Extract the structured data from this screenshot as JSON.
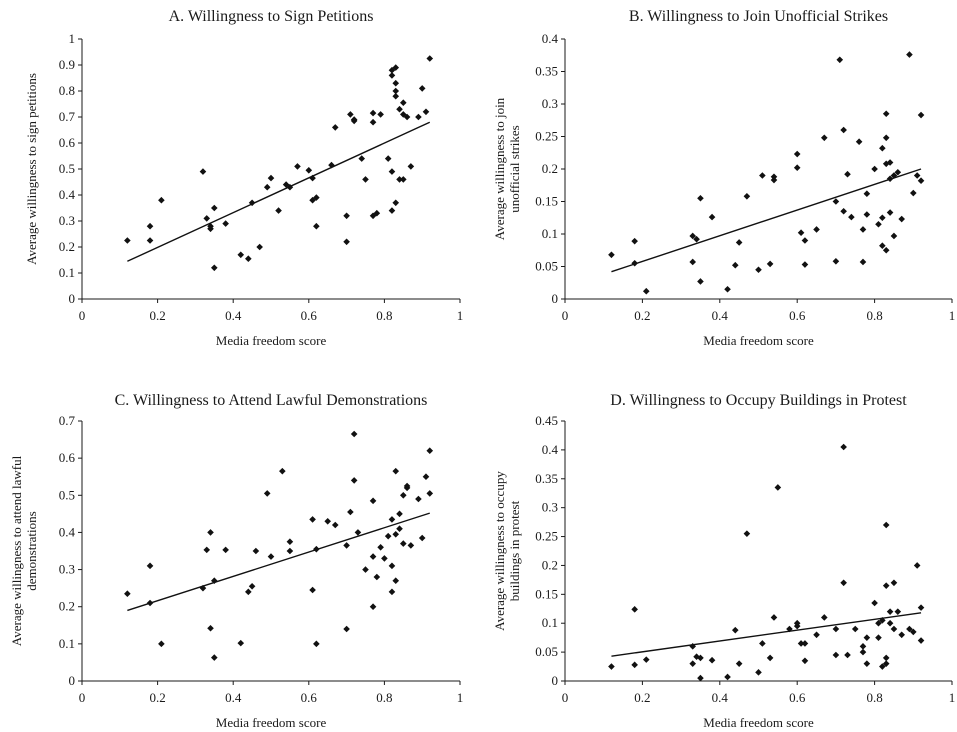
{
  "chart_data": [
    {
      "type": "scatter",
      "title": "A. Willingness to Sign Petitions",
      "xlabel": "Media freedom score",
      "ylabel": [
        "Average willingness to sign petitions"
      ],
      "xlim": [
        0,
        1
      ],
      "ylim": [
        0,
        1
      ],
      "xticks": [
        "0",
        "0.2",
        "0.4",
        "0.6",
        "0.8",
        "1"
      ],
      "yticks": [
        "0",
        "0.1",
        "0.2",
        "0.3",
        "0.4",
        "0.5",
        "0.6",
        "0.7",
        "0.8",
        "0.9",
        "1"
      ],
      "grid": false,
      "trendline": {
        "x": [
          0.12,
          0.92
        ],
        "y": [
          0.145,
          0.68
        ]
      },
      "points": [
        [
          0.12,
          0.225
        ],
        [
          0.18,
          0.28
        ],
        [
          0.18,
          0.225
        ],
        [
          0.21,
          0.38
        ],
        [
          0.32,
          0.49
        ],
        [
          0.33,
          0.31
        ],
        [
          0.34,
          0.28
        ],
        [
          0.34,
          0.27
        ],
        [
          0.35,
          0.35
        ],
        [
          0.35,
          0.12
        ],
        [
          0.38,
          0.29
        ],
        [
          0.42,
          0.17
        ],
        [
          0.44,
          0.155
        ],
        [
          0.45,
          0.37
        ],
        [
          0.47,
          0.2
        ],
        [
          0.49,
          0.43
        ],
        [
          0.5,
          0.465
        ],
        [
          0.52,
          0.34
        ],
        [
          0.54,
          0.44
        ],
        [
          0.55,
          0.43
        ],
        [
          0.57,
          0.51
        ],
        [
          0.6,
          0.495
        ],
        [
          0.61,
          0.465
        ],
        [
          0.61,
          0.38
        ],
        [
          0.62,
          0.39
        ],
        [
          0.62,
          0.28
        ],
        [
          0.66,
          0.515
        ],
        [
          0.67,
          0.66
        ],
        [
          0.7,
          0.32
        ],
        [
          0.7,
          0.22
        ],
        [
          0.71,
          0.71
        ],
        [
          0.72,
          0.69
        ],
        [
          0.72,
          0.685
        ],
        [
          0.74,
          0.54
        ],
        [
          0.75,
          0.46
        ],
        [
          0.77,
          0.715
        ],
        [
          0.77,
          0.68
        ],
        [
          0.77,
          0.32
        ],
        [
          0.78,
          0.33
        ],
        [
          0.79,
          0.71
        ],
        [
          0.81,
          0.54
        ],
        [
          0.82,
          0.49
        ],
        [
          0.82,
          0.34
        ],
        [
          0.82,
          0.88
        ],
        [
          0.82,
          0.86
        ],
        [
          0.83,
          0.83
        ],
        [
          0.83,
          0.89
        ],
        [
          0.83,
          0.37
        ],
        [
          0.83,
          0.8
        ],
        [
          0.83,
          0.78
        ],
        [
          0.84,
          0.73
        ],
        [
          0.84,
          0.46
        ],
        [
          0.85,
          0.755
        ],
        [
          0.85,
          0.71
        ],
        [
          0.85,
          0.46
        ],
        [
          0.86,
          0.7
        ],
        [
          0.87,
          0.51
        ],
        [
          0.89,
          0.7
        ],
        [
          0.9,
          0.81
        ],
        [
          0.91,
          0.72
        ],
        [
          0.92,
          0.925
        ]
      ]
    },
    {
      "type": "scatter",
      "title": "B. Willingness to Join Unofficial Strikes",
      "xlabel": "Media freedom score",
      "ylabel": [
        "Average willingness to join",
        "unofficial strikes"
      ],
      "xlim": [
        0,
        1
      ],
      "ylim": [
        0,
        0.4
      ],
      "xticks": [
        "0",
        "0.2",
        "0.4",
        "0.6",
        "0.8",
        "1"
      ],
      "yticks": [
        "0",
        "0.05",
        "0.1",
        "0.15",
        "0.2",
        "0.25",
        "0.3",
        "0.35",
        "0.4"
      ],
      "grid": false,
      "trendline": {
        "x": [
          0.12,
          0.92
        ],
        "y": [
          0.042,
          0.2
        ]
      },
      "points": [
        [
          0.12,
          0.068
        ],
        [
          0.18,
          0.089
        ],
        [
          0.18,
          0.055
        ],
        [
          0.21,
          0.012
        ],
        [
          0.33,
          0.057
        ],
        [
          0.33,
          0.097
        ],
        [
          0.34,
          0.092
        ],
        [
          0.35,
          0.155
        ],
        [
          0.35,
          0.027
        ],
        [
          0.38,
          0.126
        ],
        [
          0.42,
          0.015
        ],
        [
          0.44,
          0.052
        ],
        [
          0.45,
          0.087
        ],
        [
          0.47,
          0.158
        ],
        [
          0.5,
          0.045
        ],
        [
          0.51,
          0.19
        ],
        [
          0.53,
          0.054
        ],
        [
          0.54,
          0.183
        ],
        [
          0.54,
          0.188
        ],
        [
          0.6,
          0.202
        ],
        [
          0.6,
          0.223
        ],
        [
          0.61,
          0.102
        ],
        [
          0.62,
          0.053
        ],
        [
          0.62,
          0.09
        ],
        [
          0.65,
          0.107
        ],
        [
          0.67,
          0.248
        ],
        [
          0.7,
          0.15
        ],
        [
          0.7,
          0.058
        ],
        [
          0.71,
          0.368
        ],
        [
          0.72,
          0.26
        ],
        [
          0.72,
          0.135
        ],
        [
          0.73,
          0.192
        ],
        [
          0.74,
          0.126
        ],
        [
          0.76,
          0.242
        ],
        [
          0.77,
          0.057
        ],
        [
          0.77,
          0.107
        ],
        [
          0.78,
          0.162
        ],
        [
          0.78,
          0.13
        ],
        [
          0.8,
          0.2
        ],
        [
          0.81,
          0.115
        ],
        [
          0.82,
          0.125
        ],
        [
          0.82,
          0.082
        ],
        [
          0.82,
          0.232
        ],
        [
          0.83,
          0.248
        ],
        [
          0.83,
          0.285
        ],
        [
          0.83,
          0.075
        ],
        [
          0.83,
          0.208
        ],
        [
          0.84,
          0.21
        ],
        [
          0.84,
          0.185
        ],
        [
          0.84,
          0.133
        ],
        [
          0.85,
          0.097
        ],
        [
          0.85,
          0.19
        ],
        [
          0.86,
          0.195
        ],
        [
          0.87,
          0.123
        ],
        [
          0.89,
          0.376
        ],
        [
          0.9,
          0.163
        ],
        [
          0.91,
          0.19
        ],
        [
          0.92,
          0.283
        ],
        [
          0.92,
          0.182
        ]
      ]
    },
    {
      "type": "scatter",
      "title": "C. Willingness to Attend Lawful Demonstrations",
      "xlabel": "Media freedom score",
      "ylabel": [
        "Average willingness to attend lawful",
        "demonstrations"
      ],
      "xlim": [
        0,
        1
      ],
      "ylim": [
        0,
        0.7
      ],
      "xticks": [
        "0",
        "0.2",
        "0.4",
        "0.6",
        "0.8",
        "1"
      ],
      "yticks": [
        "0",
        "0.1",
        "0.2",
        "0.3",
        "0.4",
        "0.5",
        "0.6",
        "0.7"
      ],
      "grid": false,
      "trendline": {
        "x": [
          0.12,
          0.92
        ],
        "y": [
          0.19,
          0.452
        ]
      },
      "points": [
        [
          0.12,
          0.235
        ],
        [
          0.18,
          0.31
        ],
        [
          0.18,
          0.21
        ],
        [
          0.21,
          0.1
        ],
        [
          0.32,
          0.25
        ],
        [
          0.33,
          0.353
        ],
        [
          0.34,
          0.4
        ],
        [
          0.34,
          0.142
        ],
        [
          0.35,
          0.27
        ],
        [
          0.35,
          0.063
        ],
        [
          0.38,
          0.353
        ],
        [
          0.42,
          0.102
        ],
        [
          0.44,
          0.24
        ],
        [
          0.45,
          0.255
        ],
        [
          0.46,
          0.35
        ],
        [
          0.49,
          0.505
        ],
        [
          0.5,
          0.335
        ],
        [
          0.53,
          0.565
        ],
        [
          0.55,
          0.375
        ],
        [
          0.55,
          0.35
        ],
        [
          0.61,
          0.435
        ],
        [
          0.61,
          0.245
        ],
        [
          0.62,
          0.1
        ],
        [
          0.62,
          0.355
        ],
        [
          0.65,
          0.43
        ],
        [
          0.67,
          0.42
        ],
        [
          0.7,
          0.14
        ],
        [
          0.7,
          0.365
        ],
        [
          0.71,
          0.455
        ],
        [
          0.72,
          0.54
        ],
        [
          0.72,
          0.665
        ],
        [
          0.73,
          0.4
        ],
        [
          0.75,
          0.3
        ],
        [
          0.77,
          0.2
        ],
        [
          0.77,
          0.335
        ],
        [
          0.77,
          0.485
        ],
        [
          0.78,
          0.28
        ],
        [
          0.79,
          0.36
        ],
        [
          0.8,
          0.33
        ],
        [
          0.81,
          0.39
        ],
        [
          0.82,
          0.435
        ],
        [
          0.82,
          0.24
        ],
        [
          0.82,
          0.31
        ],
        [
          0.83,
          0.565
        ],
        [
          0.83,
          0.395
        ],
        [
          0.83,
          0.27
        ],
        [
          0.84,
          0.45
        ],
        [
          0.84,
          0.41
        ],
        [
          0.85,
          0.5
        ],
        [
          0.85,
          0.37
        ],
        [
          0.86,
          0.52
        ],
        [
          0.86,
          0.525
        ],
        [
          0.87,
          0.365
        ],
        [
          0.89,
          0.49
        ],
        [
          0.9,
          0.385
        ],
        [
          0.91,
          0.55
        ],
        [
          0.92,
          0.62
        ],
        [
          0.92,
          0.505
        ]
      ]
    },
    {
      "type": "scatter",
      "title": "D. Willingness to Occupy Buildings in Protest",
      "xlabel": "Media freedom score",
      "ylabel": [
        "Average willingness to occupy",
        "buildings in protest"
      ],
      "xlim": [
        0,
        1
      ],
      "ylim": [
        0,
        0.45
      ],
      "xticks": [
        "0",
        "0.2",
        "0.4",
        "0.6",
        "0.8",
        "1"
      ],
      "yticks": [
        "0",
        "0.05",
        "0.1",
        "0.15",
        "0.2",
        "0.25",
        "0.3",
        "0.35",
        "0.4",
        "0.45"
      ],
      "grid": false,
      "trendline": {
        "x": [
          0.12,
          0.92
        ],
        "y": [
          0.043,
          0.118
        ]
      },
      "points": [
        [
          0.12,
          0.025
        ],
        [
          0.18,
          0.028
        ],
        [
          0.18,
          0.124
        ],
        [
          0.21,
          0.037
        ],
        [
          0.33,
          0.06
        ],
        [
          0.33,
          0.03
        ],
        [
          0.34,
          0.042
        ],
        [
          0.35,
          0.04
        ],
        [
          0.35,
          0.005
        ],
        [
          0.38,
          0.036
        ],
        [
          0.42,
          0.007
        ],
        [
          0.44,
          0.088
        ],
        [
          0.45,
          0.03
        ],
        [
          0.47,
          0.255
        ],
        [
          0.5,
          0.015
        ],
        [
          0.51,
          0.065
        ],
        [
          0.53,
          0.04
        ],
        [
          0.54,
          0.11
        ],
        [
          0.55,
          0.335
        ],
        [
          0.58,
          0.09
        ],
        [
          0.6,
          0.1
        ],
        [
          0.6,
          0.095
        ],
        [
          0.61,
          0.065
        ],
        [
          0.62,
          0.035
        ],
        [
          0.62,
          0.065
        ],
        [
          0.65,
          0.08
        ],
        [
          0.67,
          0.11
        ],
        [
          0.7,
          0.045
        ],
        [
          0.7,
          0.09
        ],
        [
          0.72,
          0.17
        ],
        [
          0.72,
          0.405
        ],
        [
          0.73,
          0.045
        ],
        [
          0.75,
          0.09
        ],
        [
          0.77,
          0.05
        ],
        [
          0.77,
          0.06
        ],
        [
          0.78,
          0.075
        ],
        [
          0.78,
          0.03
        ],
        [
          0.8,
          0.135
        ],
        [
          0.81,
          0.1
        ],
        [
          0.81,
          0.075
        ],
        [
          0.82,
          0.025
        ],
        [
          0.82,
          0.105
        ],
        [
          0.83,
          0.27
        ],
        [
          0.83,
          0.165
        ],
        [
          0.83,
          0.04
        ],
        [
          0.83,
          0.03
        ],
        [
          0.84,
          0.12
        ],
        [
          0.84,
          0.1
        ],
        [
          0.85,
          0.17
        ],
        [
          0.85,
          0.09
        ],
        [
          0.86,
          0.12
        ],
        [
          0.87,
          0.08
        ],
        [
          0.89,
          0.09
        ],
        [
          0.9,
          0.085
        ],
        [
          0.91,
          0.2
        ],
        [
          0.92,
          0.127
        ],
        [
          0.92,
          0.07
        ]
      ]
    }
  ]
}
